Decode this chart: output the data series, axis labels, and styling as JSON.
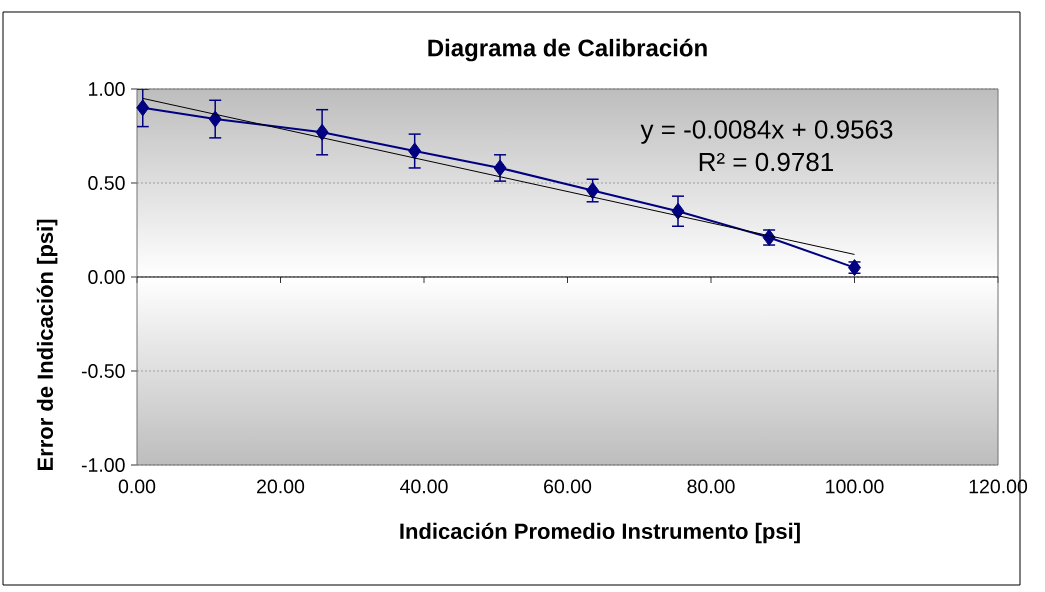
{
  "chart_data": {
    "type": "line",
    "title": "Diagrama de Calibración",
    "xlabel": "Indicación Promedio Instrumento [psi]",
    "ylabel": "Error de Indicación [psi]",
    "annotations": [
      "y = -0.0084x  + 0.9563",
      "R² = 0.9781"
    ],
    "x": [
      0.8,
      10.9,
      25.8,
      38.7,
      50.6,
      63.5,
      75.4,
      88.1,
      100.0
    ],
    "series": [
      {
        "color": "#000080",
        "values": [
          0.9,
          0.84,
          0.77,
          0.67,
          0.58,
          0.46,
          0.35,
          0.21,
          0.05
        ],
        "errors": [
          0.1,
          0.1,
          0.12,
          0.09,
          0.07,
          0.06,
          0.08,
          0.04,
          0.03
        ]
      },
      {
        "color": "#000000",
        "x": [
          0.8,
          100.0
        ],
        "values": [
          0.95,
          0.12
        ],
        "marker": "none"
      }
    ],
    "xlim": [
      0,
      120
    ],
    "ylim": [
      -1,
      1
    ],
    "xticks": [
      {
        "value": 0,
        "label": "0.00"
      },
      {
        "value": 20,
        "label": "20.00"
      },
      {
        "value": 40,
        "label": "40.00"
      },
      {
        "value": 60,
        "label": "60.00"
      },
      {
        "value": 80,
        "label": "80.00"
      },
      {
        "value": 100,
        "label": "100.00"
      },
      {
        "value": 120,
        "label": "120.00"
      }
    ],
    "yticks": [
      {
        "value": -1,
        "label": "-1.00"
      },
      {
        "value": -0.5,
        "label": "-0.50"
      },
      {
        "value": 0,
        "label": "0.00"
      },
      {
        "value": 0.5,
        "label": "0.50"
      },
      {
        "value": 1,
        "label": "1.00"
      }
    ],
    "grid": "y",
    "marker": "diamond",
    "line_style": "solid"
  }
}
